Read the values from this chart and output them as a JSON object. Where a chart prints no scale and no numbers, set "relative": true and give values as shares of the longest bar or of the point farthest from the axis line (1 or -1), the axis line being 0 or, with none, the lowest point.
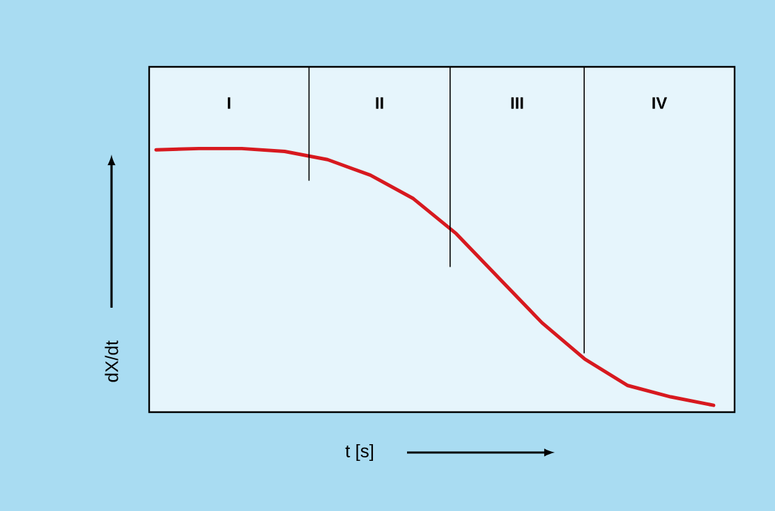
{
  "chart_data": {
    "type": "line",
    "relative": true,
    "xlabel": "t [s]",
    "ylabel": "dX/dt",
    "categories": [
      null,
      null,
      null,
      null,
      null,
      null,
      null,
      null,
      null,
      null,
      null,
      null,
      null,
      null
    ],
    "series": [
      {
        "color": "#d7191f",
        "values": [
          0.995,
          1,
          1,
          0.989,
          0.958,
          0.899,
          0.81,
          0.677,
          0.508,
          0.339,
          0.201,
          0.101,
          0.058,
          0.026
        ]
      }
    ],
    "annotations": [
      "I",
      "II",
      "III",
      "IV"
    ]
  }
}
